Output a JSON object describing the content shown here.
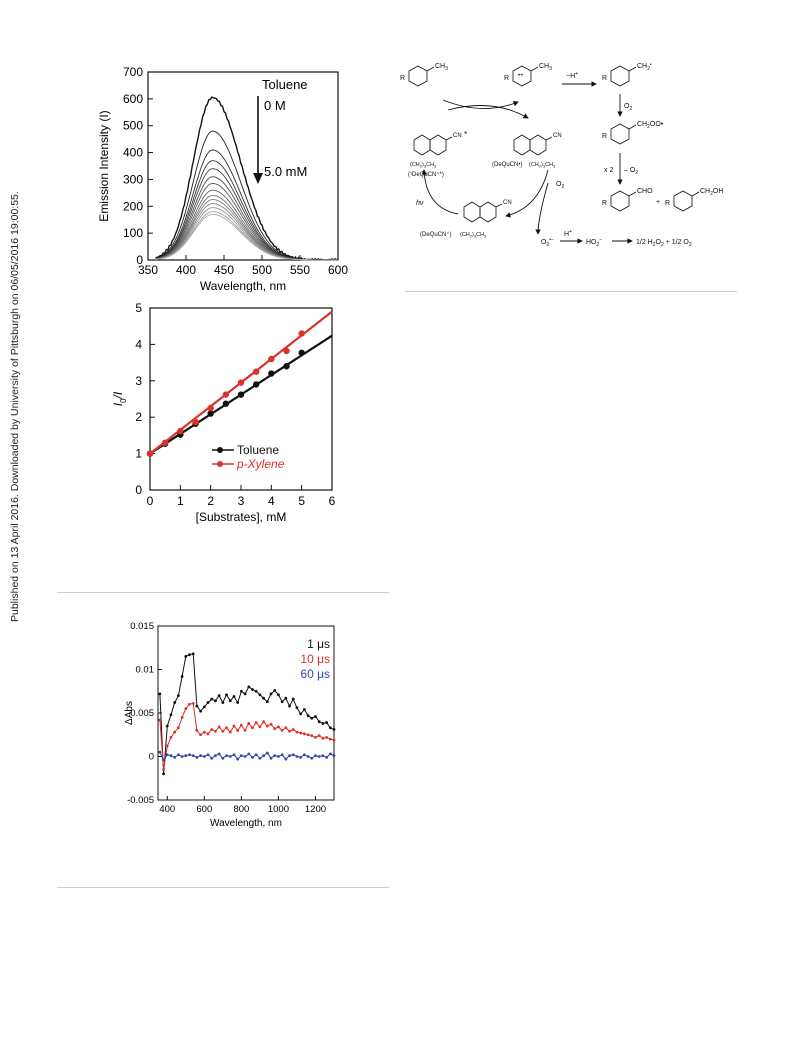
{
  "sidebar": {
    "note": "Published on 13 April 2016. Downloaded by University of Pittsburgh on 06/05/2016 19:00:55."
  },
  "chart_data": [
    {
      "type": "line",
      "legend_title": "Toluene",
      "annotation_start": "0 M",
      "annotation_end": "5.0 mM",
      "xlabel": "Wavelength, nm",
      "ylabel": "Emission Intensity (I)",
      "xlim": [
        350,
        600
      ],
      "ylim": [
        0,
        700
      ],
      "xticks": [
        "350",
        "400",
        "450",
        "500",
        "550",
        "600"
      ],
      "yticks": [
        "0",
        "100",
        "200",
        "300",
        "400",
        "500",
        "600",
        "700"
      ],
      "peak_wavelength": 435,
      "curve_start": 360,
      "curve_end": 600,
      "series_peaks": [
        605,
        480,
        410,
        370,
        340,
        310,
        285,
        260,
        240,
        225,
        210,
        195,
        180,
        170
      ]
    },
    {
      "type": "scatter",
      "xlabel": "[Substrates], mM",
      "ylabel": "I0 / I",
      "ylabel_main": "I",
      "ylabel_sub": "0",
      "ylabel_tail": "/I",
      "xlim": [
        0,
        6
      ],
      "ylim": [
        0,
        5
      ],
      "xticks": [
        "0",
        "1",
        "2",
        "3",
        "4",
        "5",
        "6"
      ],
      "yticks": [
        "0",
        "1",
        "2",
        "3",
        "4",
        "5"
      ],
      "series": [
        {
          "name": "Toluene",
          "color": "#111111",
          "slope": 0.54,
          "x": [
            0,
            0.5,
            1,
            1.5,
            2,
            2.5,
            3,
            3.5,
            4,
            4.5,
            5
          ],
          "y": [
            1.0,
            1.27,
            1.52,
            1.82,
            2.1,
            2.37,
            2.62,
            2.9,
            3.2,
            3.4,
            3.77
          ]
        },
        {
          "name": "p-Xylene",
          "color": "#d9322e",
          "slope": 0.65,
          "x": [
            0,
            0.5,
            1,
            1.5,
            2,
            2.5,
            3,
            3.5,
            4,
            4.5,
            5
          ],
          "y": [
            1.0,
            1.3,
            1.62,
            1.87,
            2.25,
            2.62,
            2.95,
            3.25,
            3.6,
            3.82,
            4.3
          ]
        }
      ],
      "legend_position": "bottom-right"
    },
    {
      "type": "line",
      "xlabel": "Wavelength, nm",
      "ylabel": "ΔAbs",
      "xlim": [
        350,
        1300
      ],
      "ylim": [
        -0.005,
        0.015
      ],
      "xticks": [
        "400",
        "600",
        "800",
        "1000",
        "1200"
      ],
      "yticks": [
        "-0.005",
        "0",
        "0.005",
        "0.01",
        "0.015"
      ],
      "series": [
        {
          "name": "1 μs",
          "color": "#111111",
          "x": [
            360,
            380,
            400,
            420,
            440,
            460,
            480,
            500,
            520,
            540,
            560,
            580,
            600,
            620,
            640,
            660,
            680,
            700,
            720,
            740,
            760,
            780,
            800,
            820,
            840,
            860,
            880,
            900,
            920,
            940,
            960,
            980,
            1000,
            1020,
            1040,
            1060,
            1080,
            1100,
            1120,
            1140,
            1160,
            1180,
            1200,
            1220,
            1240,
            1260,
            1280,
            1300
          ],
          "y": [
            0.0072,
            -0.002,
            0.0035,
            0.0048,
            0.0062,
            0.007,
            0.0092,
            0.0115,
            0.0117,
            0.0118,
            0.0058,
            0.0052,
            0.0057,
            0.0062,
            0.0066,
            0.0064,
            0.007,
            0.0062,
            0.0071,
            0.0064,
            0.0069,
            0.0062,
            0.0075,
            0.0072,
            0.008,
            0.0077,
            0.0075,
            0.0071,
            0.0067,
            0.0063,
            0.0072,
            0.0076,
            0.0071,
            0.0063,
            0.0067,
            0.0058,
            0.0066,
            0.0056,
            0.0049,
            0.0054,
            0.0047,
            0.0044,
            0.0046,
            0.004,
            0.0038,
            0.0039,
            0.0033,
            0.0031
          ]
        },
        {
          "name": "10 μs",
          "color": "#e0302a",
          "x": [
            360,
            380,
            400,
            420,
            440,
            460,
            480,
            500,
            520,
            540,
            560,
            580,
            600,
            620,
            640,
            660,
            680,
            700,
            720,
            740,
            760,
            780,
            800,
            820,
            840,
            860,
            880,
            900,
            920,
            940,
            960,
            980,
            1000,
            1020,
            1040,
            1060,
            1080,
            1100,
            1120,
            1140,
            1160,
            1180,
            1200,
            1220,
            1240,
            1260,
            1280,
            1300
          ],
          "y": [
            0.0042,
            -0.0015,
            0.0012,
            0.0022,
            0.0028,
            0.0033,
            0.0045,
            0.0055,
            0.006,
            0.0061,
            0.003,
            0.0025,
            0.0028,
            0.0026,
            0.0031,
            0.0029,
            0.0034,
            0.0029,
            0.0033,
            0.0028,
            0.0035,
            0.003,
            0.0036,
            0.003,
            0.0038,
            0.0033,
            0.0039,
            0.0034,
            0.004,
            0.0035,
            0.0037,
            0.0032,
            0.0034,
            0.003,
            0.0033,
            0.0029,
            0.0031,
            0.0028,
            0.0027,
            0.0026,
            0.0025,
            0.0024,
            0.0022,
            0.0024,
            0.0021,
            0.0022,
            0.002,
            0.0019
          ]
        },
        {
          "name": "60 μs",
          "color": "#2d4ba8",
          "x": [
            360,
            380,
            400,
            420,
            440,
            460,
            480,
            500,
            520,
            540,
            560,
            580,
            600,
            620,
            640,
            660,
            680,
            700,
            720,
            740,
            760,
            780,
            800,
            820,
            840,
            860,
            880,
            900,
            920,
            940,
            960,
            980,
            1000,
            1020,
            1040,
            1060,
            1080,
            1100,
            1120,
            1140,
            1160,
            1180,
            1200,
            1220,
            1240,
            1260,
            1280,
            1300
          ],
          "y": [
            0.0005,
            -0.0004,
            0.0002,
            0.0001,
            -0.0001,
            0.0002,
            0.0,
            0.0001,
            0.0002,
            0.0001,
            -0.0001,
            0.0001,
            0.0,
            0.0002,
            -0.0002,
            0.0001,
            0.0003,
            -0.0002,
            0.0001,
            0.0,
            0.0002,
            -0.0003,
            0.0001,
            0.0,
            0.0003,
            -0.0001,
            0.0002,
            -0.0002,
            0.0001,
            0.0004,
            -0.0002,
            0.0001,
            0.0,
            0.0002,
            -0.0003,
            0.0001,
            0.0002,
            0.0,
            -0.0001,
            0.0002,
            0.0,
            -0.0002,
            0.0001,
            0.0,
            0.0001,
            -0.0001,
            0.0003,
            0.0001
          ]
        }
      ],
      "legend_position": "top-right"
    }
  ],
  "scheme": {
    "labels": {
      "r_top": "R",
      "ch3": "CH",
      "ch3_sub": "3",
      "radical_cation": "•+",
      "minus_h": "−H",
      "h_sup": "+",
      "benzyl_radical": "CH",
      "benzyl_sub": "2",
      "benzyl_dot": "•",
      "o2": "O",
      "o2_sub": "2",
      "peroxyl": "CH",
      "peroxyl_sub": "2",
      "peroxyl_tail": "OO•",
      "x2": "x 2",
      "minus_o2": "– O",
      "minus_o2_sub": "2",
      "cho": "CHO",
      "plus": "+",
      "ch2oh": "CH",
      "ch2oh_sub": "2",
      "ch2oh_tail": "OH",
      "cn": "CN",
      "excited_star": "*",
      "butyl": "(CH",
      "butyl_sub": "2",
      "butyl_mid": ")",
      "butyl_sub2": "3",
      "butyl_tail": "CH",
      "butyl_sub3": "3",
      "excited_label": "(¹DeQuCN⁺*)",
      "radical_label": "(DeQuCN•)",
      "ground_label": "(DeQuCN⁺)",
      "hv": "hν",
      "superoxide": "O",
      "superoxide_sub": "2",
      "superoxide_sup": "•−",
      "h_plus": "H",
      "h_plus_sup": "+",
      "ho2": "HO",
      "ho2_sub": "2",
      "ho2_sup": "−",
      "products": "1/2 H",
      "products_sub": "2",
      "products_mid": "O",
      "products_sub2": "2",
      "products_tail": " + 1/2 O",
      "products_sub3": "2"
    }
  }
}
